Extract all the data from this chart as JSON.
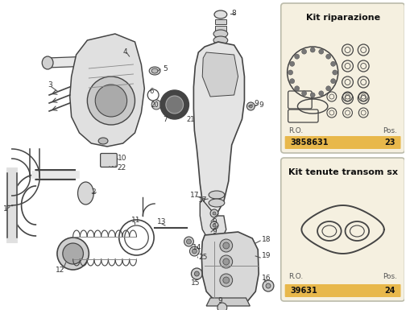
{
  "bg_color": "#ffffff",
  "box1_title": "Kit riparazione",
  "box1_ro": "R.O.",
  "box1_pos": "Pos.",
  "box1_code": "3858631",
  "box1_num": "23",
  "box2_title": "Kit tenute transom sx",
  "box2_ro": "R.O.",
  "box2_pos": "Pos.",
  "box2_code": "39631",
  "box2_num": "24",
  "gold_color": "#e8b84b",
  "box_bg": "#f5f0e0",
  "line_color": "#444444",
  "label_color": "#222222"
}
